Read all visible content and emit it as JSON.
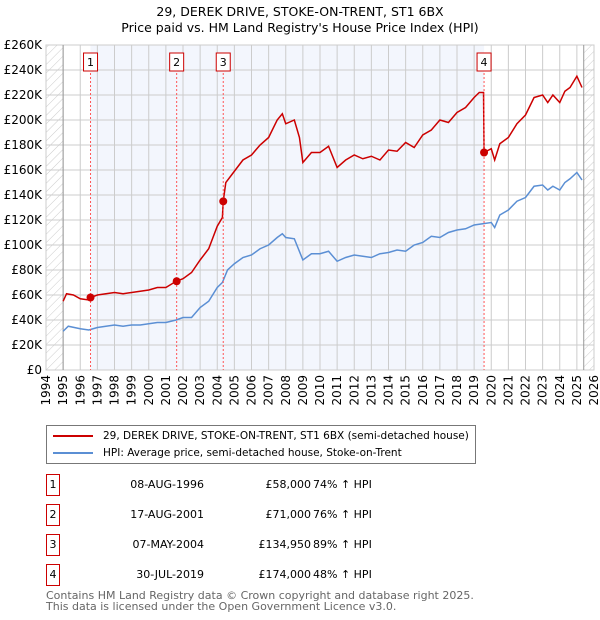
{
  "chart_data": {
    "type": "line",
    "title": "29, DEREK DRIVE, STOKE-ON-TRENT, ST1 6BX",
    "subtitle": "Price paid vs. HM Land Registry's House Price Index (HPI)",
    "xlim": [
      1994,
      2026
    ],
    "ylim": [
      0,
      260000
    ],
    "x_ticks": [
      "1994",
      "1995",
      "1996",
      "1997",
      "1998",
      "1999",
      "2000",
      "2001",
      "2002",
      "2003",
      "2004",
      "2005",
      "2006",
      "2007",
      "2008",
      "2009",
      "2010",
      "2011",
      "2012",
      "2013",
      "2014",
      "2015",
      "2016",
      "2017",
      "2018",
      "2019",
      "2020",
      "2021",
      "2022",
      "2023",
      "2024",
      "2025",
      "2026"
    ],
    "y_ticks": [
      "£0",
      "£20K",
      "£40K",
      "£60K",
      "£80K",
      "£100K",
      "£120K",
      "£140K",
      "£160K",
      "£180K",
      "£200K",
      "£220K",
      "£240K",
      "£260K"
    ],
    "grid": true,
    "series": [
      {
        "name": "29, DEREK DRIVE, STOKE-ON-TRENT, ST1 6BX (semi-detached house)",
        "color": "#cc0000",
        "x": [
          1995,
          1995.2,
          1995.6,
          1996,
          1996.5,
          1996.6,
          1997,
          1997.5,
          1998,
          1998.5,
          1999,
          1999.5,
          2000,
          2000.5,
          2001,
          2001.6,
          2002,
          2002.5,
          2003,
          2003.5,
          2004,
          2004.3,
          2004.35,
          2004.5,
          2005,
          2005.5,
          2006,
          2006.5,
          2007,
          2007.5,
          2007.8,
          2008,
          2008.5,
          2008.8,
          2009,
          2009.5,
          2010,
          2010.5,
          2011,
          2011.5,
          2012,
          2012.5,
          2013,
          2013.5,
          2014,
          2014.5,
          2015,
          2015.5,
          2016,
          2016.5,
          2017,
          2017.5,
          2018,
          2018.5,
          2019,
          2019.3,
          2019.55,
          2019.58,
          2020,
          2020.2,
          2020.5,
          2021,
          2021.5,
          2022,
          2022.5,
          2023,
          2023.3,
          2023.6,
          2024,
          2024.3,
          2024.6,
          2025,
          2025.3
        ],
        "y": [
          55,
          61,
          60,
          57,
          56,
          58,
          60,
          61,
          62,
          61,
          62,
          63,
          64,
          66,
          66,
          71,
          73,
          78,
          88,
          97,
          115,
          122,
          135,
          150,
          159,
          168,
          172,
          180,
          186,
          200,
          205,
          197,
          200,
          186,
          166,
          174,
          174,
          179,
          162,
          168,
          172,
          169,
          171,
          168,
          176,
          175,
          182,
          178,
          188,
          192,
          200,
          198,
          206,
          210,
          218,
          222,
          222,
          174,
          177,
          168,
          181,
          186,
          197,
          204,
          218,
          220,
          214,
          220,
          214,
          223,
          226,
          235,
          226
        ]
      },
      {
        "name": "HPI: Average price, semi-detached house, Stoke-on-Trent",
        "color": "#5b8fd4",
        "x": [
          1995,
          1995.3,
          1996,
          1996.5,
          1997,
          1997.5,
          1998,
          1998.5,
          1999,
          1999.5,
          2000,
          2000.5,
          2001,
          2001.6,
          2002,
          2002.5,
          2003,
          2003.5,
          2004,
          2004.3,
          2004.6,
          2005,
          2005.5,
          2006,
          2006.5,
          2007,
          2007.5,
          2007.8,
          2008,
          2008.5,
          2009,
          2009.5,
          2010,
          2010.5,
          2011,
          2011.5,
          2012,
          2012.5,
          2013,
          2013.5,
          2014,
          2014.5,
          2015,
          2015.5,
          2016,
          2016.5,
          2017,
          2017.5,
          2018,
          2018.5,
          2019,
          2019.5,
          2020,
          2020.2,
          2020.5,
          2021,
          2021.5,
          2022,
          2022.5,
          2023,
          2023.3,
          2023.6,
          2024,
          2024.3,
          2024.6,
          2025,
          2025.3
        ],
        "y": [
          31,
          35,
          33,
          32,
          34,
          35,
          36,
          35,
          36,
          36,
          37,
          38,
          38,
          40,
          42,
          42,
          50,
          55,
          66,
          70,
          80,
          85,
          90,
          92,
          97,
          100,
          106,
          109,
          106,
          105,
          88,
          93,
          93,
          95,
          87,
          90,
          92,
          91,
          90,
          93,
          94,
          96,
          95,
          100,
          102,
          107,
          106,
          110,
          112,
          113,
          116,
          117,
          118,
          114,
          124,
          128,
          135,
          138,
          147,
          148,
          144,
          147,
          144,
          150,
          153,
          158,
          152
        ]
      }
    ],
    "y_units": "thousands GBP",
    "sales": [
      {
        "num": "1",
        "x": 1996.6,
        "date": "08-AUG-1996",
        "price": "£58,000",
        "value": 58,
        "pct": "74% ↑ HPI"
      },
      {
        "num": "2",
        "x": 2001.63,
        "date": "17-AUG-2001",
        "price": "£71,000",
        "value": 71,
        "pct": "76% ↑ HPI"
      },
      {
        "num": "3",
        "x": 2004.35,
        "date": "07-MAY-2004",
        "price": "£134,950",
        "value": 134.95,
        "pct": "89% ↑ HPI"
      },
      {
        "num": "4",
        "x": 2019.58,
        "date": "30-JUL-2019",
        "price": "£174,000",
        "value": 174,
        "pct": "48% ↑ HPI"
      }
    ],
    "legend_position": "below"
  },
  "footer": [
    "Contains HM Land Registry data © Crown copyright and database right 2025.",
    "This data is licensed under the Open Government Licence v3.0."
  ]
}
